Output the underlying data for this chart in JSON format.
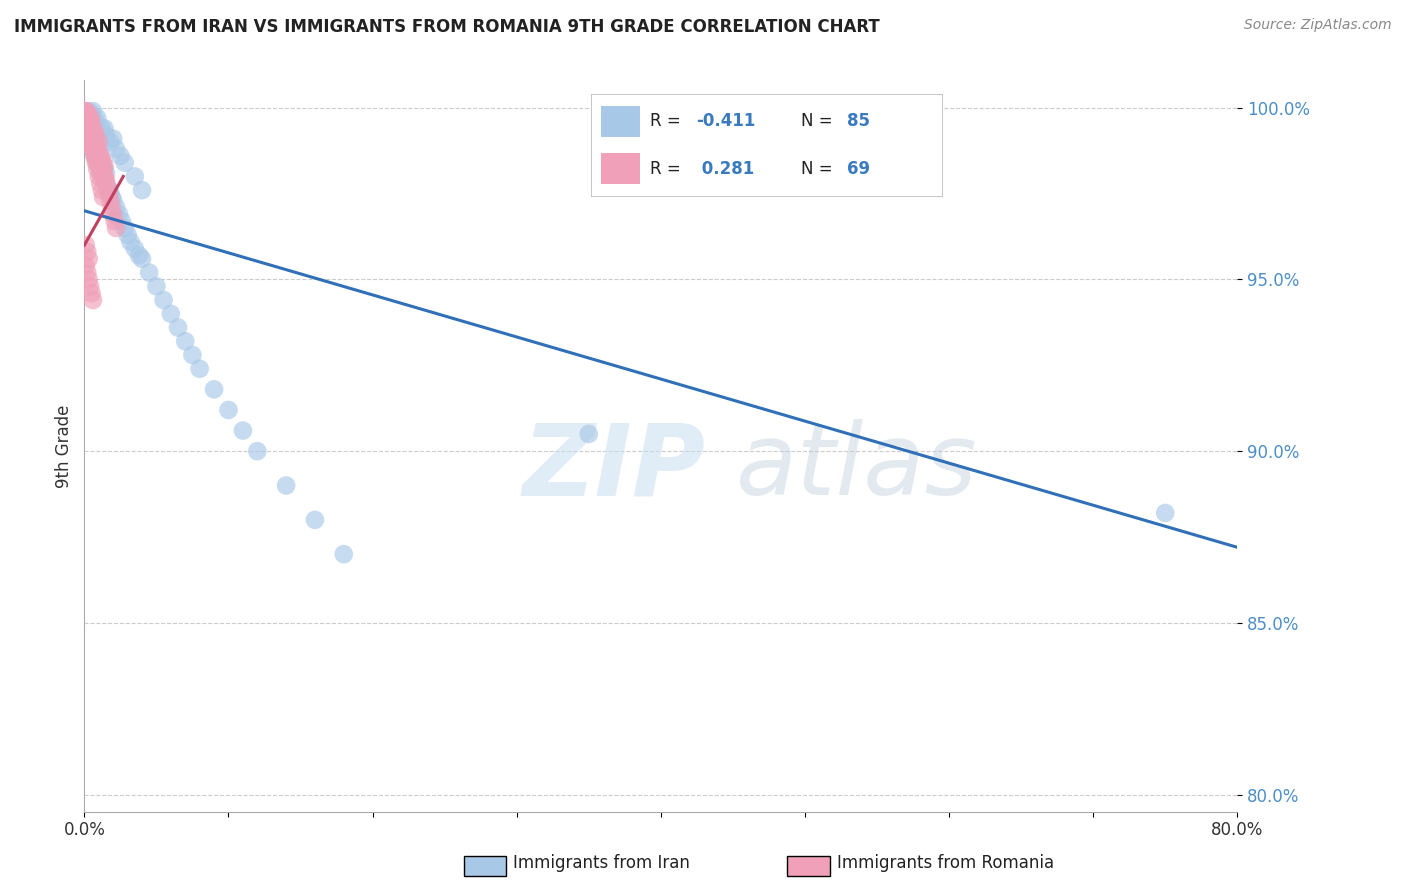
{
  "title": "IMMIGRANTS FROM IRAN VS IMMIGRANTS FROM ROMANIA 9TH GRADE CORRELATION CHART",
  "source_text": "Source: ZipAtlas.com",
  "ylabel": "9th Grade",
  "watermark_zip": "ZIP",
  "watermark_atlas": "atlas",
  "x_min": 0.0,
  "x_max": 0.8,
  "y_min": 0.795,
  "y_max": 1.008,
  "yticks": [
    0.8,
    0.85,
    0.9,
    0.95,
    1.0
  ],
  "ytick_labels": [
    "80.0%",
    "85.0%",
    "90.0%",
    "95.0%",
    "100.0%"
  ],
  "xticks": [
    0.0,
    0.1,
    0.2,
    0.3,
    0.4,
    0.5,
    0.6,
    0.7,
    0.8
  ],
  "xtick_labels": [
    "0.0%",
    "",
    "",
    "",
    "",
    "",
    "",
    "",
    "80.0%"
  ],
  "iran_color": "#a8c8e8",
  "romania_color": "#f0a0b8",
  "iran_R": -0.411,
  "iran_N": 85,
  "romania_R": 0.281,
  "romania_N": 69,
  "iran_label": "Immigrants from Iran",
  "romania_label": "Immigrants from Romania",
  "trend_iran_color": "#3070b8",
  "trend_romania_color": "#c04060",
  "trend_iran_x0": 0.0,
  "trend_iran_y0": 0.97,
  "trend_iran_x1": 0.8,
  "trend_iran_y1": 0.872,
  "trend_romania_x0": 0.0,
  "trend_romania_y0": 0.96,
  "trend_romania_x1": 0.027,
  "trend_romania_y1": 0.98,
  "iran_scatter_x": [
    0.001,
    0.002,
    0.002,
    0.003,
    0.003,
    0.003,
    0.004,
    0.004,
    0.004,
    0.005,
    0.005,
    0.005,
    0.006,
    0.006,
    0.006,
    0.007,
    0.007,
    0.007,
    0.008,
    0.008,
    0.008,
    0.009,
    0.009,
    0.01,
    0.01,
    0.01,
    0.011,
    0.011,
    0.012,
    0.012,
    0.013,
    0.013,
    0.014,
    0.014,
    0.015,
    0.015,
    0.016,
    0.017,
    0.018,
    0.019,
    0.02,
    0.022,
    0.024,
    0.026,
    0.028,
    0.03,
    0.032,
    0.035,
    0.038,
    0.04,
    0.045,
    0.05,
    0.055,
    0.06,
    0.065,
    0.07,
    0.075,
    0.08,
    0.09,
    0.1,
    0.11,
    0.12,
    0.14,
    0.16,
    0.18,
    0.005,
    0.008,
    0.012,
    0.015,
    0.018,
    0.022,
    0.025,
    0.028,
    0.035,
    0.04,
    0.002,
    0.004,
    0.007,
    0.01,
    0.35,
    0.006,
    0.009,
    0.014,
    0.02,
    0.75
  ],
  "iran_scatter_y": [
    0.997,
    0.995,
    0.998,
    0.993,
    0.996,
    0.999,
    0.991,
    0.994,
    0.998,
    0.989,
    0.992,
    0.996,
    0.988,
    0.991,
    0.995,
    0.986,
    0.99,
    0.993,
    0.985,
    0.988,
    0.992,
    0.984,
    0.987,
    0.983,
    0.986,
    0.99,
    0.982,
    0.985,
    0.981,
    0.984,
    0.98,
    0.983,
    0.979,
    0.982,
    0.978,
    0.981,
    0.977,
    0.976,
    0.975,
    0.974,
    0.973,
    0.971,
    0.969,
    0.967,
    0.965,
    0.963,
    0.961,
    0.959,
    0.957,
    0.956,
    0.952,
    0.948,
    0.944,
    0.94,
    0.936,
    0.932,
    0.928,
    0.924,
    0.918,
    0.912,
    0.906,
    0.9,
    0.89,
    0.88,
    0.87,
    0.998,
    0.996,
    0.994,
    0.992,
    0.99,
    0.988,
    0.986,
    0.984,
    0.98,
    0.976,
    0.994,
    0.991,
    0.988,
    0.984,
    0.905,
    0.999,
    0.997,
    0.994,
    0.991,
    0.882
  ],
  "romania_scatter_x": [
    0.001,
    0.001,
    0.002,
    0.002,
    0.002,
    0.003,
    0.003,
    0.003,
    0.004,
    0.004,
    0.004,
    0.005,
    0.005,
    0.005,
    0.006,
    0.006,
    0.006,
    0.007,
    0.007,
    0.007,
    0.008,
    0.008,
    0.008,
    0.009,
    0.009,
    0.01,
    0.01,
    0.01,
    0.011,
    0.011,
    0.012,
    0.012,
    0.013,
    0.013,
    0.014,
    0.014,
    0.015,
    0.016,
    0.017,
    0.018,
    0.019,
    0.02,
    0.021,
    0.022,
    0.002,
    0.003,
    0.004,
    0.005,
    0.006,
    0.007,
    0.008,
    0.009,
    0.01,
    0.011,
    0.012,
    0.013,
    0.001,
    0.002,
    0.003,
    0.004,
    0.001,
    0.002,
    0.003,
    0.001,
    0.002,
    0.003,
    0.004,
    0.005,
    0.006
  ],
  "romania_scatter_y": [
    0.997,
    0.999,
    0.995,
    0.998,
    0.993,
    0.992,
    0.995,
    0.998,
    0.99,
    0.993,
    0.997,
    0.989,
    0.992,
    0.996,
    0.988,
    0.991,
    0.994,
    0.987,
    0.99,
    0.993,
    0.986,
    0.989,
    0.992,
    0.985,
    0.988,
    0.984,
    0.987,
    0.99,
    0.983,
    0.986,
    0.982,
    0.985,
    0.981,
    0.984,
    0.98,
    0.983,
    0.979,
    0.977,
    0.975,
    0.973,
    0.971,
    0.969,
    0.967,
    0.965,
    0.996,
    0.994,
    0.992,
    0.99,
    0.988,
    0.986,
    0.984,
    0.982,
    0.98,
    0.978,
    0.976,
    0.974,
    0.999,
    0.998,
    0.997,
    0.996,
    0.96,
    0.958,
    0.956,
    0.954,
    0.952,
    0.95,
    0.948,
    0.946,
    0.944
  ],
  "legend_iran_text": "R = -0.411   N = 85",
  "legend_romania_text": "R =  0.281   N = 69"
}
